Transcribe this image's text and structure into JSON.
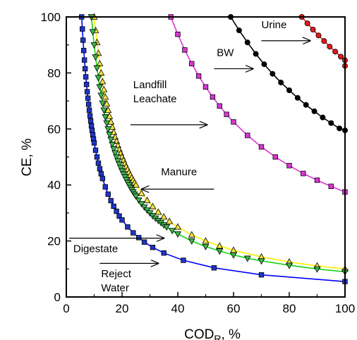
{
  "chart_data": {
    "type": "scatter",
    "ylabel": "CE, %",
    "xlabel": "COD",
    "xlabel_sub": "R",
    "xlabel_unit": ", %",
    "xlim": [
      0,
      100
    ],
    "ylim": [
      0,
      100
    ],
    "xticks": [
      "0",
      "20",
      "40",
      "60",
      "80",
      "100"
    ],
    "yticks": [
      "0",
      "20",
      "40",
      "60",
      "80",
      "100"
    ],
    "grid": false,
    "series": [
      {
        "name": "Urine",
        "marker": "circle",
        "marker_color": "#e21a1a",
        "line_color": "#e21a1a",
        "x": [
          84.5,
          86.5,
          88.5,
          90.5,
          92.5,
          94.5,
          96.5,
          98.5,
          100,
          100
        ],
        "y": [
          100,
          97.7,
          95.5,
          93.4,
          91.4,
          89.4,
          87.6,
          85.8,
          84.5,
          82.5
        ]
      },
      {
        "name": "BW",
        "marker": "circle",
        "marker_color": "#000000",
        "line_color": "#000000",
        "x": [
          59,
          62,
          65,
          68,
          71,
          74,
          77,
          80,
          83,
          86,
          89,
          92,
          95,
          98,
          100
        ],
        "y": [
          100,
          95.2,
          90.9,
          86.8,
          83.1,
          79.7,
          76.6,
          73.8,
          71.1,
          68.6,
          66.3,
          64.1,
          62.1,
          60.2,
          59.5
        ]
      },
      {
        "name": "Landfill Leachate",
        "marker": "square",
        "marker_color": "#d936d3",
        "line_color": "#d936d3",
        "x": [
          37.5,
          40,
          42.5,
          45,
          47.5,
          50,
          52.5,
          55,
          57.5,
          60,
          65,
          70,
          75,
          80,
          85,
          90,
          95,
          100
        ],
        "y": [
          100,
          93.8,
          88.2,
          83.3,
          78.9,
          75,
          71.4,
          68.2,
          65.2,
          62.5,
          57.7,
          53.6,
          50,
          46.9,
          44.1,
          41.7,
          39.5,
          37.5
        ]
      },
      {
        "name": "Manure",
        "marker": "triangle-up",
        "marker_color": "#f4e542",
        "line_color": "#f7f200",
        "x": [
          10,
          10.5,
          11,
          11.5,
          12,
          12.5,
          13,
          13.5,
          14,
          14.5,
          15,
          15.5,
          16,
          16.5,
          17,
          17.5,
          18,
          18.5,
          19,
          19.5,
          20,
          20.5,
          21,
          21.5,
          22,
          22.5,
          23,
          23.5,
          24,
          24.5,
          25,
          27,
          29,
          31,
          33,
          35,
          37,
          40,
          45,
          50,
          55,
          60,
          70,
          80,
          90,
          100
        ],
        "y": [
          100,
          95.2,
          90.9,
          87,
          83.3,
          80,
          76.9,
          74.1,
          71.4,
          69,
          66.7,
          64.5,
          62.5,
          60.6,
          58.8,
          57.1,
          55.6,
          54.1,
          52.6,
          51.3,
          50,
          48.8,
          47.6,
          46.5,
          45.5,
          44.4,
          43.5,
          42.6,
          41.7,
          40.8,
          40,
          37,
          34.5,
          32.3,
          30.3,
          28.6,
          27,
          25,
          22.2,
          20,
          18.2,
          16.7,
          14.3,
          12.5,
          11.1,
          10
        ]
      },
      {
        "name": "Digestate",
        "marker": "triangle-down",
        "marker_color": "#3cb84a",
        "line_color": "#16d416",
        "x": [
          9,
          9.5,
          10,
          10.5,
          11,
          11.5,
          12,
          12.5,
          13,
          13.5,
          14,
          14.5,
          15,
          15.5,
          16,
          16.5,
          17,
          17.5,
          18,
          18.5,
          19,
          19.5,
          20,
          20.5,
          21,
          21.5,
          22,
          22.5,
          23,
          23.5,
          24,
          24.5,
          25,
          26,
          27,
          28,
          29,
          30,
          31,
          32,
          33,
          34,
          35,
          36,
          38,
          40,
          45,
          50,
          55,
          60,
          65,
          70,
          80,
          90,
          100
        ],
        "y": [
          100,
          94.7,
          90,
          85.7,
          81.8,
          78.3,
          75,
          72,
          69.2,
          66.7,
          64.3,
          62.1,
          60,
          58.1,
          56.3,
          54.5,
          52.9,
          51.4,
          50,
          48.6,
          47.4,
          46.2,
          45,
          43.9,
          42.9,
          41.9,
          40.9,
          40,
          39.1,
          38.3,
          37.5,
          36.7,
          36,
          34.6,
          33.3,
          32.1,
          31,
          30,
          29,
          28.1,
          27.3,
          26.5,
          25.7,
          25,
          23.7,
          22.5,
          20,
          18,
          16.4,
          15,
          13.8,
          12.9,
          11.3,
          10,
          9
        ]
      },
      {
        "name": "Reject Water",
        "marker": "square",
        "marker_color": "#1e35c8",
        "line_color": "#0000ff",
        "x": [
          5.5,
          5.75,
          6,
          6.25,
          6.5,
          6.75,
          7,
          7.25,
          7.5,
          7.75,
          8,
          8.25,
          8.5,
          8.75,
          9,
          9.25,
          9.5,
          9.75,
          10,
          10.5,
          11,
          11.5,
          12,
          12.5,
          13,
          14,
          15,
          16,
          17,
          18,
          19,
          20,
          22,
          24,
          26,
          28,
          31,
          35,
          42,
          53,
          70,
          100
        ],
        "y": [
          100,
          95.7,
          91.7,
          88,
          84.6,
          81.5,
          78.6,
          75.9,
          73.3,
          71,
          68.8,
          66.7,
          64.7,
          62.9,
          61.1,
          59.5,
          57.9,
          56.4,
          55,
          52.4,
          50,
          47.8,
          45.8,
          44,
          42.3,
          39.3,
          36.7,
          34.4,
          32.4,
          30.6,
          28.9,
          27.5,
          25,
          22.9,
          21.2,
          19.6,
          17.7,
          15.7,
          13.1,
          10.4,
          7.9,
          5.5
        ]
      }
    ],
    "annotations": [
      {
        "lines": [
          "Urine"
        ],
        "text_x": 70,
        "text_y": 96,
        "arrow_from": [
          70,
          91.5
        ],
        "arrow_to": [
          87.5,
          91.5
        ]
      },
      {
        "lines": [
          "BW"
        ],
        "text_x": 54,
        "text_y": 86,
        "arrow_from": [
          53,
          81.5
        ],
        "arrow_to": [
          67,
          81.5
        ]
      },
      {
        "lines": [
          "Landfill",
          "Leachate"
        ],
        "text_x": 24,
        "text_y": 74.5,
        "arrow_from": [
          23,
          61.5
        ],
        "arrow_to": [
          50.5,
          61.5
        ]
      },
      {
        "lines": [
          "Manure"
        ],
        "text_x": 34,
        "text_y": 43.5,
        "arrow_from": [
          53,
          38.5
        ],
        "arrow_to": [
          27,
          38.5
        ]
      },
      {
        "lines": [
          "Digestate"
        ],
        "text_x": 2.5,
        "text_y": 16,
        "arrow_from": [
          1,
          21
        ],
        "arrow_to": [
          35,
          21
        ]
      },
      {
        "lines": [
          "Reject",
          "Water"
        ],
        "text_x": 12.5,
        "text_y": 7,
        "arrow_from": [
          12,
          12
        ],
        "arrow_to": [
          33,
          12
        ]
      }
    ]
  }
}
